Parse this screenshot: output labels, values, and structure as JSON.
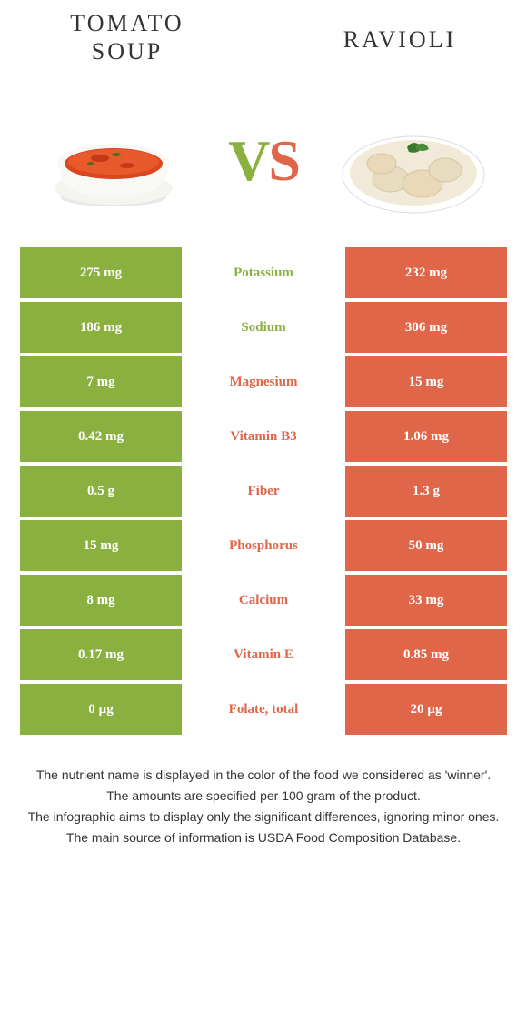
{
  "colors": {
    "left": "#8ab040",
    "right": "#e0664a",
    "row_bg_left": "#8ab040",
    "row_bg_right": "#e0664a"
  },
  "header": {
    "left_title_line1": "Tomato",
    "left_title_line2": "soup",
    "right_title": "Ravioli"
  },
  "vs": {
    "v": "V",
    "s": "S"
  },
  "rows": [
    {
      "left": "275 mg",
      "label": "Potassium",
      "right": "232 mg",
      "winner": "left"
    },
    {
      "left": "186 mg",
      "label": "Sodium",
      "right": "306 mg",
      "winner": "left"
    },
    {
      "left": "7 mg",
      "label": "Magnesium",
      "right": "15 mg",
      "winner": "right"
    },
    {
      "left": "0.42 mg",
      "label": "Vitamin B3",
      "right": "1.06 mg",
      "winner": "right"
    },
    {
      "left": "0.5 g",
      "label": "Fiber",
      "right": "1.3 g",
      "winner": "right"
    },
    {
      "left": "15 mg",
      "label": "Phosphorus",
      "right": "50 mg",
      "winner": "right"
    },
    {
      "left": "8 mg",
      "label": "Calcium",
      "right": "33 mg",
      "winner": "right"
    },
    {
      "left": "0.17 mg",
      "label": "Vitamin E",
      "right": "0.85 mg",
      "winner": "right"
    },
    {
      "left": "0 µg",
      "label": "Folate, total",
      "right": "20 µg",
      "winner": "right"
    }
  ],
  "footer": {
    "line1": "The nutrient name is displayed in the color of the food we considered as 'winner'.",
    "line2": "The amounts are specified per 100 gram of the product.",
    "line3": "The infographic aims to display only the significant differences, ignoring minor ones.",
    "line4": "The main source of information is USDA Food Composition Database."
  }
}
